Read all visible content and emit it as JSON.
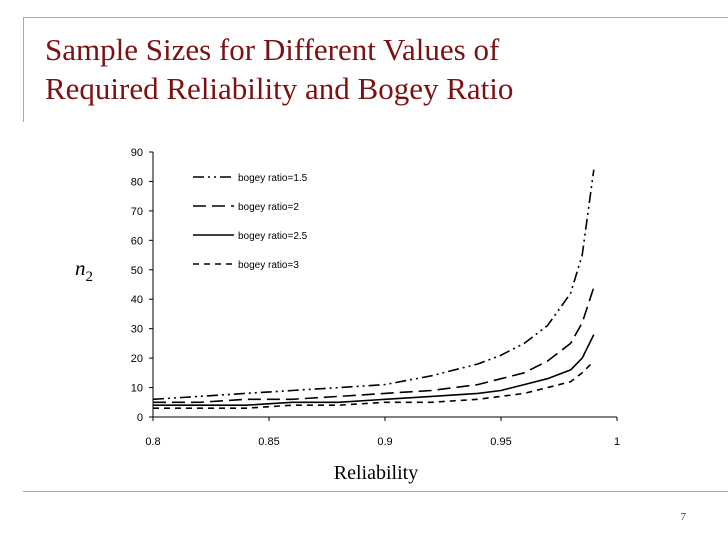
{
  "slide": {
    "title_line1": "Sample Sizes for Different Values of",
    "title_line2": "Required Reliability and Bogey Ratio",
    "page_number": "7"
  },
  "colors": {
    "frame": "#d9a441",
    "title": "#7b1113",
    "series": "#000000"
  },
  "chart_data": {
    "type": "line",
    "xlabel": "Reliability",
    "ylabel": "n",
    "ylabel_subscript": "2",
    "xlim": [
      0.8,
      1.0
    ],
    "ylim": [
      0,
      90
    ],
    "xticks": [
      "0.8",
      "0.85",
      "0.9",
      "0.95",
      "1"
    ],
    "yticks": [
      "0",
      "10",
      "20",
      "30",
      "40",
      "50",
      "60",
      "70",
      "80",
      "90"
    ],
    "legend_position": "top-left",
    "grid": false,
    "x": [
      0.8,
      0.82,
      0.84,
      0.86,
      0.88,
      0.9,
      0.92,
      0.94,
      0.95,
      0.96,
      0.97,
      0.98,
      0.985,
      0.99
    ],
    "series": [
      {
        "name": "bogey ratio=1.5",
        "dash": "dash-dot-dot",
        "values": [
          6,
          7,
          8,
          9,
          10,
          11,
          14,
          18,
          21,
          25,
          31,
          42,
          55,
          84
        ]
      },
      {
        "name": "bogey ratio=2",
        "dash": "long-dash",
        "values": [
          5,
          5,
          6,
          6,
          7,
          8,
          9,
          11,
          13,
          15,
          19,
          25,
          32,
          44
        ]
      },
      {
        "name": "bogey ratio=2.5",
        "dash": "solid",
        "values": [
          4,
          4,
          4,
          5,
          5,
          6,
          7,
          8,
          9,
          11,
          13,
          16,
          20,
          28
        ]
      },
      {
        "name": "bogey ratio=3",
        "dash": "short-dash",
        "values": [
          3,
          3,
          3,
          4,
          4,
          5,
          5,
          6,
          7,
          8,
          10,
          12,
          15,
          19
        ]
      }
    ]
  }
}
